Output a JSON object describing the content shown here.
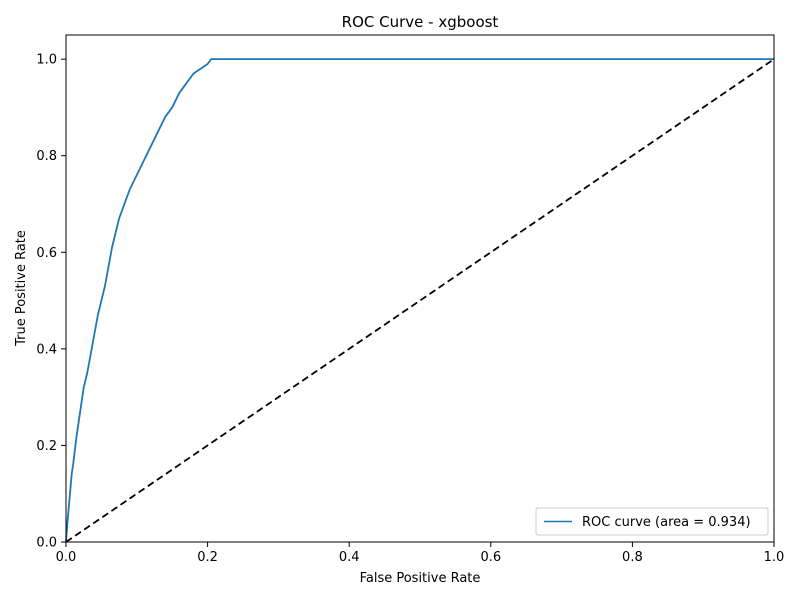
{
  "chart_data": {
    "type": "line",
    "title": "ROC Curve - xgboost",
    "xlabel": "False Positive Rate",
    "ylabel": "True Positive Rate",
    "xlim": [
      0.0,
      1.0
    ],
    "ylim": [
      0.0,
      1.05
    ],
    "x_ticks": [
      0.0,
      0.2,
      0.4,
      0.6,
      0.8,
      1.0
    ],
    "y_ticks": [
      0.0,
      0.2,
      0.4,
      0.6,
      0.8,
      1.0
    ],
    "x_tick_labels": [
      "0.0",
      "0.2",
      "0.4",
      "0.6",
      "0.8",
      "1.0"
    ],
    "y_tick_labels": [
      "0.0",
      "0.2",
      "0.4",
      "0.6",
      "0.8",
      "1.0"
    ],
    "grid": false,
    "legend": {
      "placement": "lower-right",
      "entries": [
        "ROC curve (area = 0.934)"
      ]
    },
    "series": [
      {
        "name": "ROC curve (area = 0.934)",
        "color": "#1f77b4",
        "style": "solid",
        "x": [
          0.0,
          0.002,
          0.005,
          0.008,
          0.01,
          0.015,
          0.02,
          0.025,
          0.03,
          0.035,
          0.04,
          0.045,
          0.05,
          0.055,
          0.06,
          0.065,
          0.07,
          0.075,
          0.08,
          0.085,
          0.09,
          0.1,
          0.11,
          0.12,
          0.13,
          0.14,
          0.15,
          0.16,
          0.17,
          0.18,
          0.19,
          0.2,
          0.205,
          1.0
        ],
        "y": [
          0.0,
          0.04,
          0.09,
          0.14,
          0.16,
          0.22,
          0.27,
          0.32,
          0.35,
          0.39,
          0.43,
          0.47,
          0.5,
          0.53,
          0.57,
          0.61,
          0.64,
          0.67,
          0.69,
          0.71,
          0.73,
          0.76,
          0.79,
          0.82,
          0.85,
          0.88,
          0.9,
          0.93,
          0.95,
          0.97,
          0.98,
          0.99,
          1.0,
          1.0
        ]
      },
      {
        "name": "",
        "color": "#000000",
        "style": "dashed",
        "x": [
          0.0,
          1.0
        ],
        "y": [
          0.0,
          1.0
        ]
      }
    ]
  }
}
